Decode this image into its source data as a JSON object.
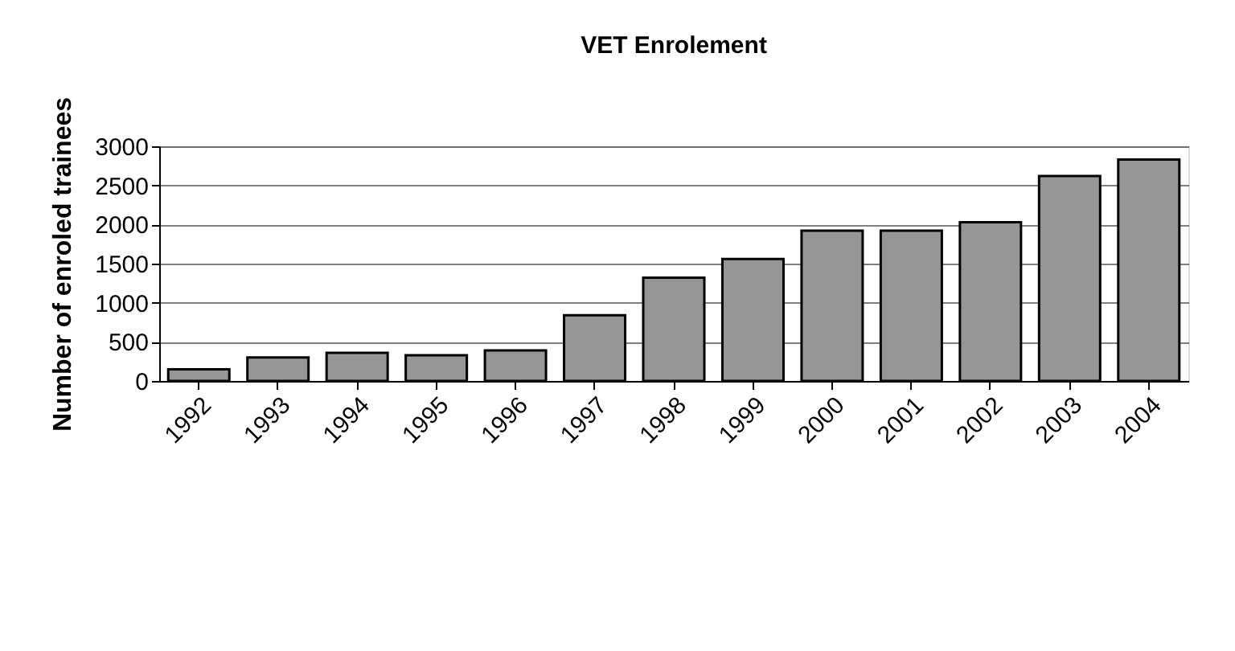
{
  "chart_data": {
    "type": "bar",
    "title": "VET Enrolement",
    "ylabel": "Number of enroled trainees",
    "categories": [
      "1992",
      "1993",
      "1994",
      "1995",
      "1996",
      "1997",
      "1998",
      "1999",
      "2000",
      "2001",
      "2002",
      "2003",
      "2004"
    ],
    "values": [
      150,
      300,
      360,
      330,
      390,
      840,
      1320,
      1560,
      1920,
      1920,
      2030,
      2620,
      2830
    ],
    "color": "#969696",
    "ylim": [
      0,
      3000
    ],
    "yticks": [
      0,
      500,
      1000,
      1500,
      2000,
      2500,
      3000
    ],
    "grid": "y"
  }
}
